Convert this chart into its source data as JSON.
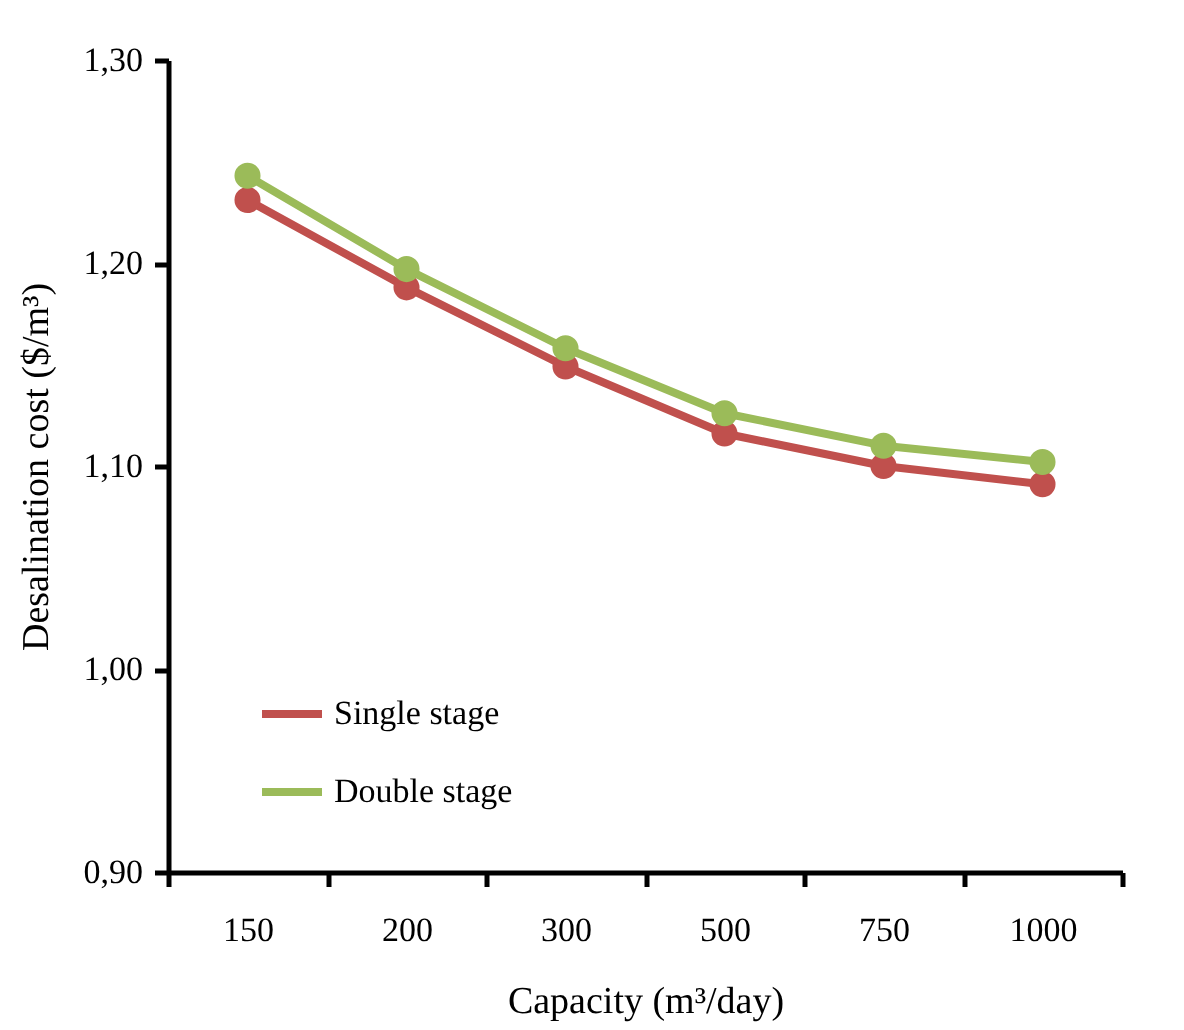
{
  "chart_data": {
    "type": "line",
    "xlabel": "Capacity (m³/day)",
    "ylabel": "Desalination cost ($/m³)",
    "categories": [
      "150",
      "200",
      "300",
      "500",
      "750",
      "1000"
    ],
    "series": [
      {
        "name": "Single stage",
        "color": "#c0504d",
        "values": [
          1.231,
          1.188,
          1.149,
          1.116,
          1.1,
          1.091
        ]
      },
      {
        "name": "Double stage",
        "color": "#9bbb59",
        "values": [
          1.243,
          1.197,
          1.158,
          1.126,
          1.11,
          1.102
        ]
      }
    ],
    "ylim": [
      0.9,
      1.3
    ],
    "yticks": [
      {
        "value": 0.9,
        "label": "0,90"
      },
      {
        "value": 1.0,
        "label": "1,00"
      },
      {
        "value": 1.1,
        "label": "1,10"
      },
      {
        "value": 1.2,
        "label": "1,20"
      },
      {
        "value": 1.3,
        "label": "1,30"
      }
    ],
    "grid": false,
    "legend": "bottom left",
    "marker": "circle",
    "line_style": "solid"
  }
}
